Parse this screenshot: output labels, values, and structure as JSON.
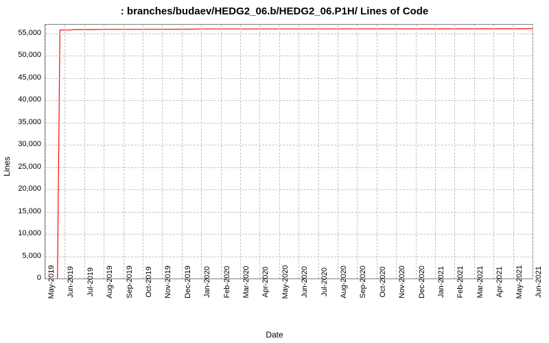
{
  "chart": {
    "type": "line",
    "title": ": branches/budaev/HEDG2_06.b/HEDG2_06.P1H/ Lines of Code",
    "title_fontsize": 15,
    "xlabel": "Date",
    "ylabel": "Lines",
    "label_fontsize": 12,
    "tick_fontsize": 11,
    "background_color": "#ffffff",
    "border_color": "#808080",
    "grid_color": "#c0c0c0",
    "line_color": "#ff0000",
    "line_width": 1.2,
    "ylim": [
      0,
      57000
    ],
    "y_ticks": [
      0,
      5000,
      10000,
      15000,
      20000,
      25000,
      30000,
      35000,
      40000,
      45000,
      50000,
      55000
    ],
    "y_tick_labels": [
      "0",
      "5,000",
      "10,000",
      "15,000",
      "20,000",
      "25,000",
      "30,000",
      "35,000",
      "40,000",
      "45,000",
      "50,000",
      "55,000"
    ],
    "x_tick_labels": [
      "May-2019",
      "Jun-2019",
      "Jul-2019",
      "Aug-2019",
      "Sep-2019",
      "Oct-2019",
      "Nov-2019",
      "Dec-2019",
      "Jan-2020",
      "Feb-2020",
      "Mar-2020",
      "Apr-2020",
      "May-2020",
      "Jun-2020",
      "Jul-2020",
      "Aug-2020",
      "Sep-2020",
      "Oct-2020",
      "Nov-2020",
      "Dec-2020",
      "Jan-2021",
      "Feb-2021",
      "Mar-2021",
      "Apr-2021",
      "May-2021",
      "Jun-2021"
    ],
    "x_count": 26,
    "data_points": [
      {
        "x": 0.025,
        "y": 0
      },
      {
        "x": 0.03,
        "y": 55800
      },
      {
        "x": 0.05,
        "y": 55800
      },
      {
        "x": 0.06,
        "y": 55900
      },
      {
        "x": 0.1,
        "y": 55900
      },
      {
        "x": 0.12,
        "y": 55950
      },
      {
        "x": 0.3,
        "y": 56000
      },
      {
        "x": 0.32,
        "y": 56050
      },
      {
        "x": 0.5,
        "y": 56050
      },
      {
        "x": 1.0,
        "y": 56100
      }
    ]
  }
}
